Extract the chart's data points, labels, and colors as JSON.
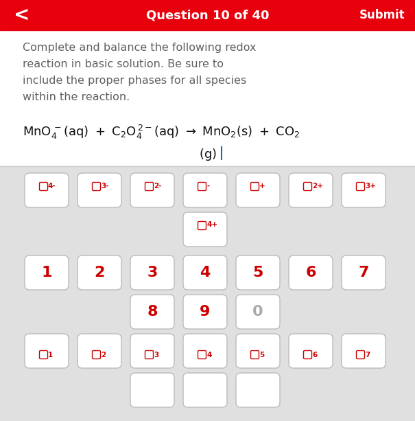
{
  "header_color": "#E8000D",
  "header_text": "Question 10 of 40",
  "header_submit": "Submit",
  "header_back": "<",
  "header_text_color": "#FFFFFF",
  "body_bg": "#FFFFFF",
  "keyboard_bg": "#E0E0E0",
  "description_color": "#606060",
  "description_lines": [
    "Complete and balance the following redox",
    "reaction in basic solution. Be sure to",
    "include the proper phases for all species",
    "within the reaction."
  ],
  "equation_color": "#111111",
  "red_color": "#CC0000",
  "button_bg": "#FFFFFF",
  "button_border": "#BBBBBB",
  "superscript_buttons_row1": [
    "4-",
    "3-",
    "2-",
    "-",
    "+",
    "2+",
    "3+"
  ],
  "number_buttons": [
    "1",
    "2",
    "3",
    "4",
    "5",
    "6",
    "7"
  ],
  "number_buttons_row2": [
    "8",
    "9",
    "0"
  ],
  "subscript_buttons": [
    "1",
    "2",
    "3",
    "4",
    "5",
    "6",
    "7"
  ],
  "cursor_color": "#1a6ea8",
  "zero_color": "#AAAAAA",
  "divider_color": "#CCCCCC"
}
